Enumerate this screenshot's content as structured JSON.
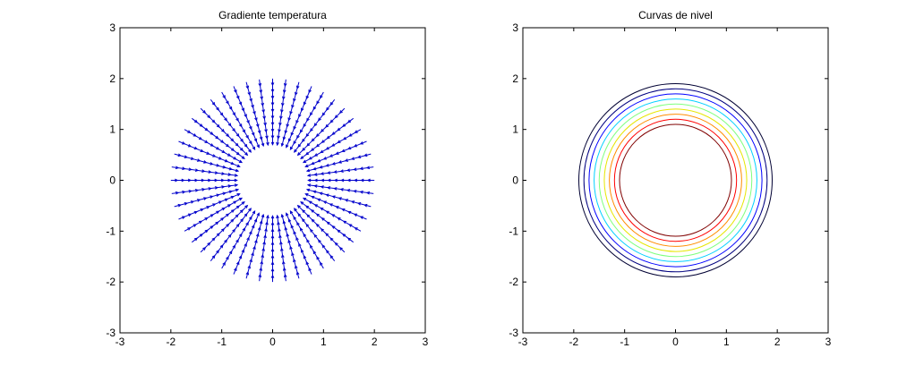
{
  "chart_data": [
    {
      "type": "quiver",
      "title": "Gradiente temperatura",
      "xlabel": "",
      "ylabel": "",
      "xlim": [
        -3,
        3
      ],
      "ylim": [
        -3,
        3
      ],
      "xticks": [
        "-3",
        "-2",
        "-1",
        "0",
        "1",
        "2",
        "3"
      ],
      "yticks": [
        "-3",
        "-2",
        "-1",
        "0",
        "1",
        "2",
        "3"
      ],
      "grid": false,
      "color": "#0000cc",
      "arrow_direction": "radially inward",
      "inner_radius": 0.7,
      "outer_radius": 2.0,
      "num_directions": 48,
      "num_rings": 10
    },
    {
      "type": "contour",
      "title": "Curvas de nivel",
      "xlabel": "",
      "ylabel": "",
      "xlim": [
        -3,
        3
      ],
      "ylim": [
        -3,
        3
      ],
      "xticks": [
        "-3",
        "-2",
        "-1",
        "0",
        "1",
        "2",
        "3"
      ],
      "yticks": [
        "-3",
        "-2",
        "-1",
        "0",
        "1",
        "2",
        "3"
      ],
      "grid": false,
      "levels": [
        {
          "radius": 1.1,
          "color": "#800000"
        },
        {
          "radius": 1.2,
          "color": "#ff0000"
        },
        {
          "radius": 1.3,
          "color": "#ff8c00"
        },
        {
          "radius": 1.4,
          "color": "#e6e600"
        },
        {
          "radius": 1.5,
          "color": "#7fff7f"
        },
        {
          "radius": 1.6,
          "color": "#00d0ff"
        },
        {
          "radius": 1.7,
          "color": "#0000ff"
        },
        {
          "radius": 1.8,
          "color": "#00007f"
        },
        {
          "radius": 1.9,
          "color": "#000033"
        }
      ]
    }
  ]
}
